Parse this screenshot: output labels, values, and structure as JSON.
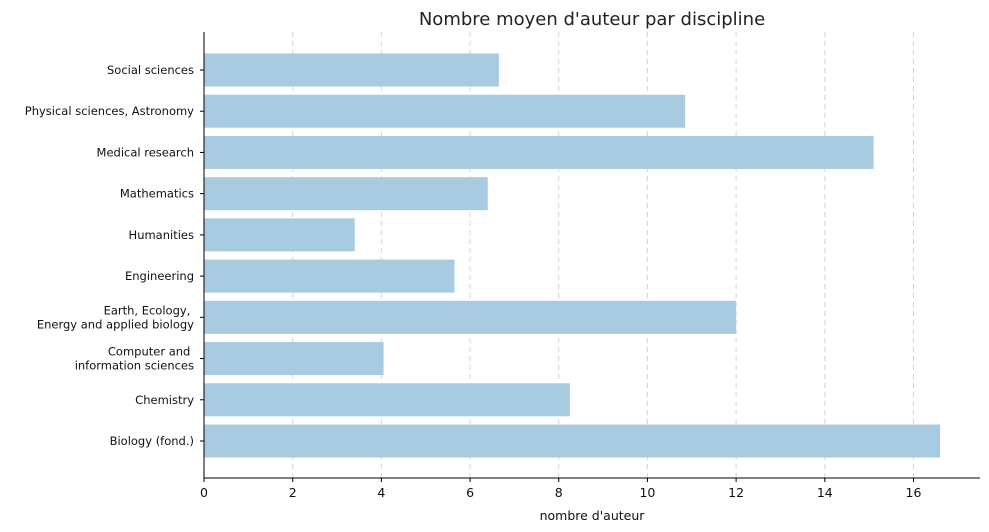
{
  "chart_data": {
    "type": "bar",
    "orientation": "horizontal",
    "title": "Nombre moyen d'auteur par discipline",
    "xlabel": "nombre d'auteur",
    "ylabel": "",
    "xlim": [
      0,
      17.5
    ],
    "xticks": [
      0,
      2,
      4,
      6,
      8,
      10,
      12,
      14,
      16
    ],
    "grid": "x-dashed",
    "bar_color": "#a8cbe2",
    "categories": [
      "Biology (fond.)",
      "Chemistry",
      "Computer and \ninformation sciences",
      "Earth, Ecology, \nEnergy and applied biology",
      "Engineering",
      "Humanities",
      "Mathematics",
      "Medical research",
      "Physical sciences, Astronomy",
      "Social sciences"
    ],
    "values": [
      16.6,
      8.25,
      4.05,
      12.0,
      5.65,
      3.4,
      6.4,
      15.1,
      10.85,
      6.65
    ]
  }
}
